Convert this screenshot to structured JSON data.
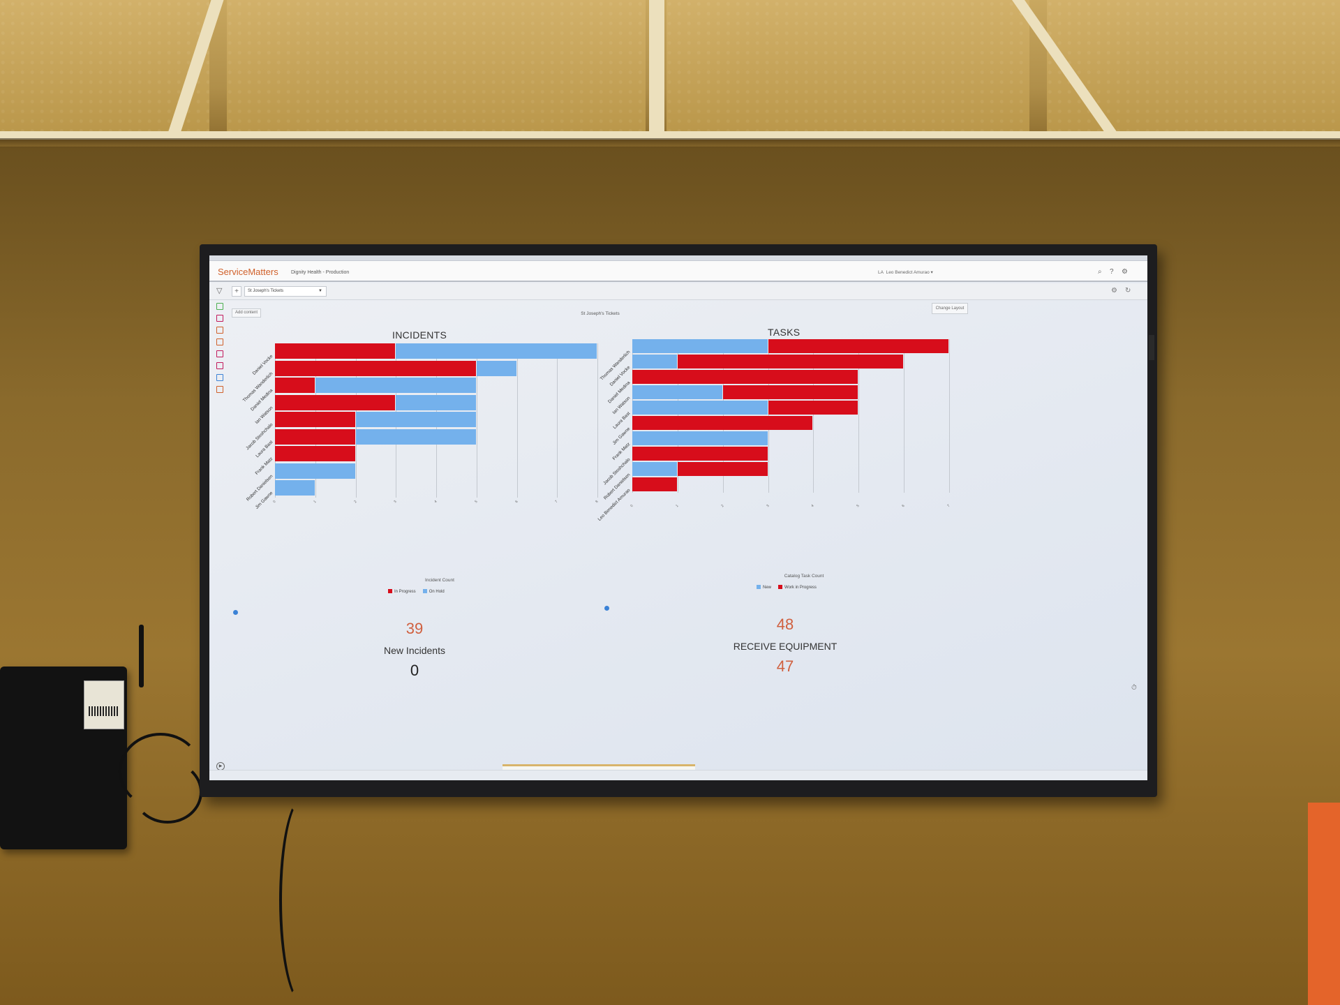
{
  "app": {
    "brand": "ServiceMatters",
    "environment": "Dignity Health - Production",
    "user": "Leo Benedict Amurao",
    "user_initials": "LA"
  },
  "toolbar": {
    "dashboard_select": "St Joseph's Tickets",
    "add_content": "Add content",
    "change_layout": "Change Layout",
    "dashboard_title": "St Joseph's Tickets"
  },
  "colors": {
    "in_progress": "#d70d1b",
    "on_hold": "#74b1ec",
    "accent_number": "#d0603f",
    "brand": "#d0602a"
  },
  "chart_data": [
    {
      "type": "bar",
      "orientation": "horizontal",
      "stacked": true,
      "title": "INCIDENTS",
      "xlabel": "Incident Count",
      "xlim": [
        0,
        8
      ],
      "categories": [
        "Daniel Vocke",
        "Thomas Wanderlich",
        "Daniel Medina",
        "Ian Watson",
        "Jacob Stoshchalo",
        "Laura Bast",
        "Frank Matz",
        "Robert Danielsen",
        "Jim Gawne"
      ],
      "series": [
        {
          "name": "In Progress",
          "color": "#d70d1b",
          "values": [
            3,
            5,
            1,
            3,
            2,
            2,
            2,
            0,
            0
          ]
        },
        {
          "name": "On Hold",
          "color": "#74b1ec",
          "values": [
            5,
            1,
            4,
            2,
            3,
            3,
            0,
            2,
            1
          ]
        }
      ],
      "legend": "bottom-center"
    },
    {
      "type": "bar",
      "orientation": "horizontal",
      "stacked": true,
      "title": "TASKS",
      "xlabel": "Catalog Task Count",
      "xlim": [
        0,
        7
      ],
      "categories": [
        "Thomas Wanderlich",
        "Daniel Vocke",
        "Daniel Medina",
        "Ian Watson",
        "Laura Bast",
        "Jim Gawne",
        "Frank Matz",
        "Jacob Stoshchalo",
        "Robert Danielsen",
        "Leo Benedict Amurao"
      ],
      "series": [
        {
          "name": "New",
          "color": "#74b1ec",
          "values": [
            3,
            1,
            0,
            2,
            3,
            0,
            3,
            0,
            1,
            0
          ]
        },
        {
          "name": "Work in Progress",
          "color": "#d70d1b",
          "values": [
            4,
            5,
            5,
            3,
            2,
            4,
            0,
            3,
            2,
            1
          ]
        }
      ],
      "legend": "bottom-center"
    }
  ],
  "widgets": {
    "incidents_total": "39",
    "new_incidents_label": "New Incidents",
    "new_incidents_value": "0",
    "tasks_total": "48",
    "receive_equipment_label": "RECEIVE EQUIPMENT",
    "receive_equipment_value": "47"
  },
  "icons": {
    "filter": "filter-icon",
    "search": "search-icon",
    "help": "help-icon",
    "settings": "gear-icon",
    "refresh": "refresh-icon",
    "play": "play-icon",
    "timer": "timer-icon"
  }
}
